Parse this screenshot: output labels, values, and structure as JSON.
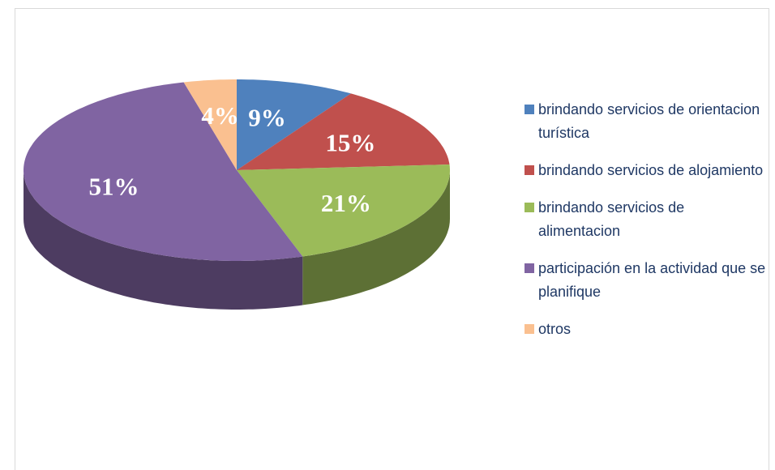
{
  "chart_data": {
    "type": "pie",
    "categories": [
      "brindando servicios de orientacion turística",
      "brindando servicios de alojamiento",
      "brindando servicios de alimentacion",
      "participación en la actividad que se planifique",
      "otros"
    ],
    "values": [
      9,
      15,
      21,
      51,
      4
    ],
    "value_labels": [
      "9%",
      "15%",
      "21%",
      "51%",
      "4%"
    ],
    "colors": [
      "#4f81bd",
      "#c0504d",
      "#9bbb59",
      "#8064a2",
      "#fac090"
    ],
    "legend": "right"
  }
}
